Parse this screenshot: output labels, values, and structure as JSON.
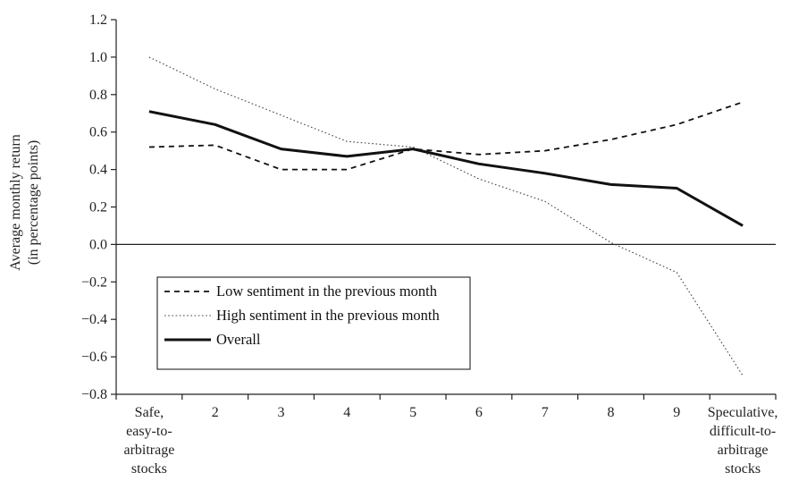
{
  "chart_data": {
    "type": "line",
    "title": "",
    "xlabel": "",
    "ylabel_lines": [
      "Average monthly return",
      "(in percentage points)"
    ],
    "categories": [
      [
        "Safe,",
        "easy-to-",
        "arbitrage",
        "stocks"
      ],
      [
        "2"
      ],
      [
        "3"
      ],
      [
        "4"
      ],
      [
        "5"
      ],
      [
        "6"
      ],
      [
        "7"
      ],
      [
        "8"
      ],
      [
        "9"
      ],
      [
        "Speculative,",
        "difficult-to-",
        "arbitrage",
        "stocks"
      ]
    ],
    "ylim": [
      -0.8,
      1.2
    ],
    "yticks": [
      "−0.8",
      "−0.6",
      "−0.4",
      "−0.2",
      "0.0",
      "0.2",
      "0.4",
      "0.6",
      "0.8",
      "1.0",
      "1.2"
    ],
    "ytick_values": [
      -0.8,
      -0.6,
      -0.4,
      -0.2,
      0.0,
      0.2,
      0.4,
      0.6,
      0.8,
      1.0,
      1.2
    ],
    "grid": false,
    "legend_position": "lower-left",
    "series": [
      {
        "name": "Low sentiment in the previous month",
        "style": "dashed",
        "color": "#111111",
        "values": [
          0.52,
          0.53,
          0.4,
          0.4,
          0.51,
          0.48,
          0.5,
          0.56,
          0.64,
          0.76
        ]
      },
      {
        "name": "High sentiment in the previous month",
        "style": "dotted",
        "color": "#444444",
        "values": [
          1.0,
          0.83,
          0.69,
          0.55,
          0.52,
          0.35,
          0.23,
          0.01,
          -0.15,
          -0.7
        ]
      },
      {
        "name": "Overall",
        "style": "solid",
        "color": "#111111",
        "values": [
          0.71,
          0.64,
          0.51,
          0.47,
          0.51,
          0.43,
          0.38,
          0.32,
          0.3,
          0.1
        ]
      }
    ]
  }
}
